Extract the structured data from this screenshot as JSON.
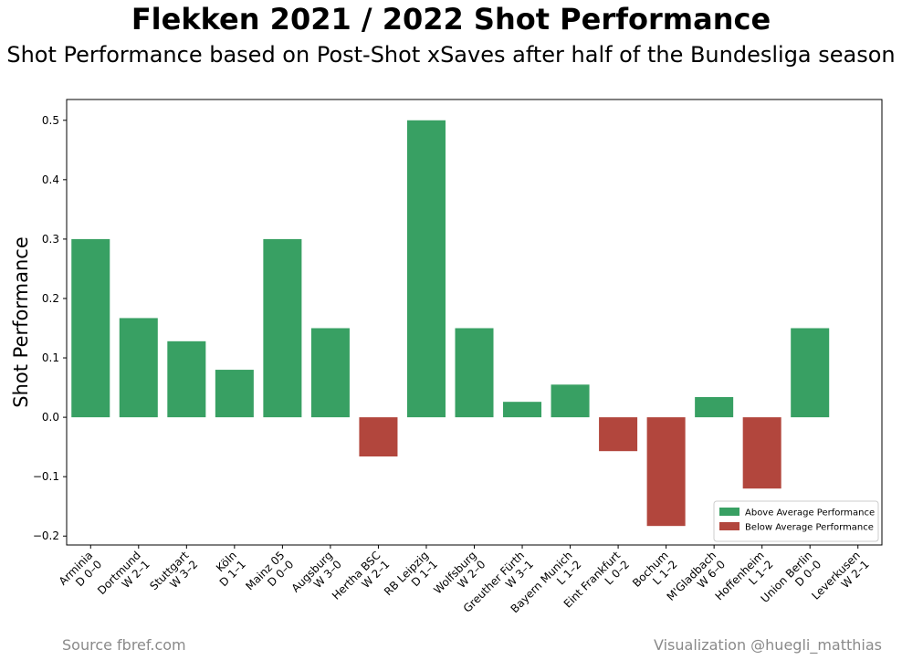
{
  "header": {
    "title": "Flekken 2021 / 2022 Shot Performance",
    "subtitle": "Shot Performance based on Post-Shot xSaves after half of the Bundesliga season"
  },
  "footer": {
    "source": "Source fbref.com",
    "credit": "Visualization @huegli_matthias"
  },
  "colors": {
    "above": "#38a063",
    "below": "#b2463d"
  },
  "chart_data": {
    "type": "bar",
    "ylabel": "Shot Performance",
    "xlabel": "",
    "ylim": [
      -0.215,
      0.535
    ],
    "yticks": [
      -0.2,
      -0.1,
      0.0,
      0.1,
      0.2,
      0.3,
      0.4,
      0.5
    ],
    "ytick_labels": [
      "−0.2",
      "−0.1",
      "0.0",
      "0.1",
      "0.2",
      "0.3",
      "0.4",
      "0.5"
    ],
    "grid": false,
    "legend_position": "bottom-right",
    "legend": [
      {
        "label": "Above Average Performance",
        "color": "#38a063"
      },
      {
        "label": "Below Average Performance",
        "color": "#b2463d"
      }
    ],
    "categories": [
      [
        "Arminia",
        "D 0–0"
      ],
      [
        "Dortmund",
        "W 2–1"
      ],
      [
        "Stuttgart",
        "W 3–2"
      ],
      [
        "Köln",
        "D 1–1"
      ],
      [
        "Mainz 05",
        "D 0–0"
      ],
      [
        "Augsburg",
        "W 3–0"
      ],
      [
        "Hertha BSC",
        "W 2–1"
      ],
      [
        "RB Leipzig",
        "D 1–1"
      ],
      [
        "Wolfsburg",
        "W 2–0"
      ],
      [
        "Greuther Fürth",
        "W 3–1"
      ],
      [
        "Bayern Munich",
        "L 1–2"
      ],
      [
        "Eint Frankfurt",
        "L 0–2"
      ],
      [
        "Bochum",
        "L 1–2"
      ],
      [
        "M'Gladbach",
        "W 6–0"
      ],
      [
        "Hoffenheim",
        "L 1–2"
      ],
      [
        "Union Berlin",
        "D 0–0"
      ],
      [
        "Leverkusen",
        "W 2–1"
      ]
    ],
    "values": [
      0.3,
      0.167,
      0.128,
      0.08,
      0.3,
      0.15,
      -0.066,
      0.5,
      0.15,
      0.026,
      0.055,
      -0.057,
      -0.183,
      0.034,
      -0.12,
      0.15,
      0.0
    ]
  }
}
